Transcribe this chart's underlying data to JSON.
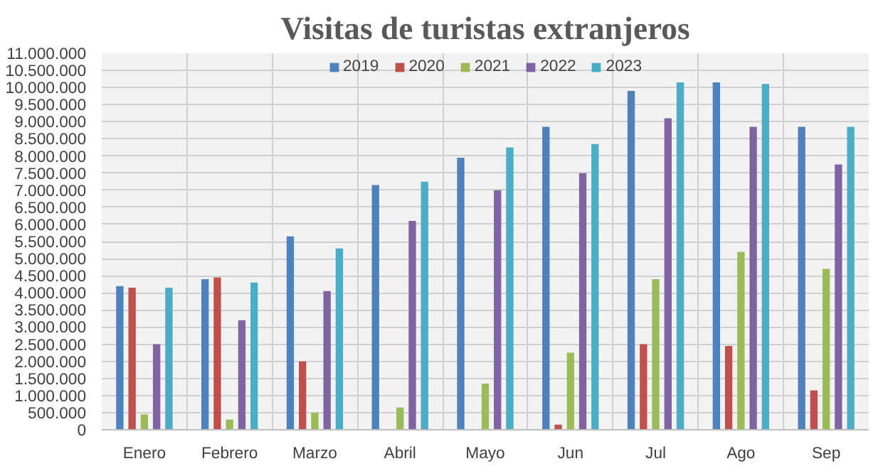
{
  "chart_data": {
    "type": "bar",
    "title": "Visitas de turistas extranjeros",
    "categories": [
      "Enero",
      "Febrero",
      "Marzo",
      "Abril",
      "Mayo",
      "Jun",
      "Jul",
      "Ago",
      "Sep"
    ],
    "series": [
      {
        "name": "2019",
        "color": "#4f81bd",
        "values": [
          4200000,
          4400000,
          5650000,
          7150000,
          7950000,
          8850000,
          9900000,
          10150000,
          8850000
        ]
      },
      {
        "name": "2020",
        "color": "#c0504d",
        "values": [
          4150000,
          4450000,
          2000000,
          null,
          null,
          150000,
          2500000,
          2450000,
          1150000
        ]
      },
      {
        "name": "2021",
        "color": "#9bbb59",
        "values": [
          450000,
          300000,
          500000,
          650000,
          1350000,
          2250000,
          4400000,
          5200000,
          4700000
        ]
      },
      {
        "name": "2022",
        "color": "#8064a2",
        "values": [
          2500000,
          3200000,
          4050000,
          6100000,
          7000000,
          7500000,
          9100000,
          8850000,
          7750000
        ]
      },
      {
        "name": "2023",
        "color": "#4bacc6",
        "values": [
          4150000,
          4300000,
          5300000,
          7250000,
          8250000,
          8350000,
          10150000,
          10100000,
          8850000
        ]
      }
    ],
    "ylim": [
      0,
      11000000
    ],
    "yticks": [
      {
        "value": 0,
        "label": "0"
      },
      {
        "value": 500000,
        "label": "500.000"
      },
      {
        "value": 1000000,
        "label": "1.000.000"
      },
      {
        "value": 1500000,
        "label": "1.500.000"
      },
      {
        "value": 2000000,
        "label": "2.000.000"
      },
      {
        "value": 2500000,
        "label": "2.500.000"
      },
      {
        "value": 3000000,
        "label": "3.000.000"
      },
      {
        "value": 3500000,
        "label": "3.500.000"
      },
      {
        "value": 4000000,
        "label": "4.000.000"
      },
      {
        "value": 4500000,
        "label": "4.500.000"
      },
      {
        "value": 5000000,
        "label": "5.000.000"
      },
      {
        "value": 5500000,
        "label": "5.500.000"
      },
      {
        "value": 6000000,
        "label": "6.000.000"
      },
      {
        "value": 6500000,
        "label": "6.500.000"
      },
      {
        "value": 7000000,
        "label": "7.000.000"
      },
      {
        "value": 7500000,
        "label": "7.500.000"
      },
      {
        "value": 8000000,
        "label": "8.000.000"
      },
      {
        "value": 8500000,
        "label": "8.500.000"
      },
      {
        "value": 9000000,
        "label": "9.000.000"
      },
      {
        "value": 9500000,
        "label": "9.500.000"
      },
      {
        "value": 10000000,
        "label": "10.000.000"
      },
      {
        "value": 10500000,
        "label": "10.500.000"
      },
      {
        "value": 11000000,
        "label": "11.000.000"
      }
    ],
    "grid": true,
    "legend": "top"
  }
}
